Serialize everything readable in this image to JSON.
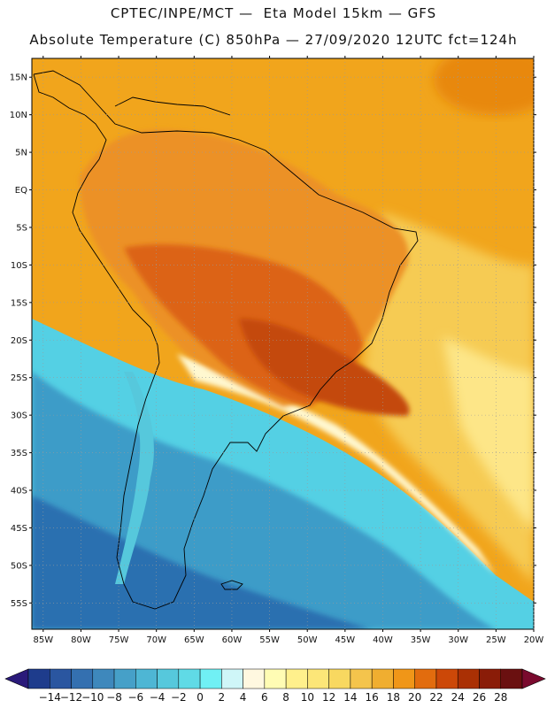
{
  "header": {
    "line1": "CPTEC/INPE/MCT —  Eta Model 15km — GFS",
    "line2": "Absolute Temperature (C) 850hPa — 27/09/2020 12UTC fct=124h"
  },
  "axes": {
    "lat_labels": [
      "15N",
      "10N",
      "5N",
      "EQ",
      "5S",
      "10S",
      "15S",
      "20S",
      "25S",
      "30S",
      "35S",
      "40S",
      "45S",
      "50S",
      "55S"
    ],
    "lat_values": [
      15,
      10,
      5,
      0,
      -5,
      -10,
      -15,
      -20,
      -25,
      -30,
      -35,
      -40,
      -45,
      -50,
      -55
    ],
    "lon_labels": [
      "85W",
      "80W",
      "75W",
      "70W",
      "65W",
      "60W",
      "55W",
      "50W",
      "45W",
      "40W",
      "35W",
      "30W",
      "25W",
      "20W"
    ],
    "lon_values": [
      -85,
      -80,
      -75,
      -70,
      -65,
      -60,
      -55,
      -50,
      -45,
      -40,
      -35,
      -30,
      -25,
      -20
    ],
    "lat_range": [
      -58.5,
      17.5
    ],
    "lon_range": [
      -86.5,
      -20
    ]
  },
  "colorbar": {
    "unit": "C",
    "labels": [
      "-14",
      "-12",
      "-10",
      "-8",
      "-6",
      "-4",
      "-2",
      "0",
      "2",
      "4",
      "6",
      "8",
      "10",
      "12",
      "14",
      "16",
      "18",
      "20",
      "22",
      "24",
      "26",
      "28"
    ],
    "colors": [
      "#1e3c8c",
      "#2a56a0",
      "#3470b0",
      "#3e88bc",
      "#46a0c8",
      "#4eb6d4",
      "#56c8dc",
      "#60dae6",
      "#70f0f4",
      "#cff6f8",
      "#fff8e0",
      "#fffcb4",
      "#fff08c",
      "#fce678",
      "#f8d860",
      "#f4c44c",
      "#f0ae30",
      "#f09618",
      "#e26c0e",
      "#cc4808",
      "#aa3004",
      "#8a1c08",
      "#6a1010"
    ],
    "arrow_left": "#2a1a7a",
    "arrow_right": "#7a0a2e"
  },
  "map_colors": {
    "ocean_north": "#f1a51c",
    "land_warm": "#ec9126",
    "land_hot": "#dc6414",
    "land_hottest": "#c44a08",
    "ne_ocean_warm": "#e8880e",
    "atlantic_mid": "#f6cb52",
    "atlantic_pale": "#fde688",
    "cold_front": "#fff8d0",
    "cyan_band": "#54d0e4",
    "blue_mid": "#3c9cc8",
    "blue_deep": "#2c70b0",
    "coastline": "#000000"
  }
}
